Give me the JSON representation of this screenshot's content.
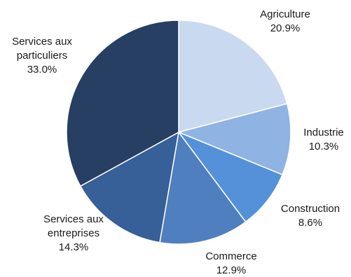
{
  "chart_data": {
    "type": "pie",
    "title": "",
    "start_angle_deg": 0,
    "direction": "clockwise",
    "slices": [
      {
        "label": [
          "Agriculture"
        ],
        "value": 20.9,
        "value_label": "20.9%",
        "color": "#c9d9ef"
      },
      {
        "label": [
          "Industrie"
        ],
        "value": 10.3,
        "value_label": "10.3%",
        "color": "#8fb3e2"
      },
      {
        "label": [
          "Construction"
        ],
        "value": 8.6,
        "value_label": "8.6%",
        "color": "#5491d8"
      },
      {
        "label": [
          "Commerce"
        ],
        "value": 12.9,
        "value_label": "12.9%",
        "color": "#4f7fbf"
      },
      {
        "label": [
          "Services aux",
          "entreprises"
        ],
        "value": 14.3,
        "value_label": "14.3%",
        "color": "#375f98"
      },
      {
        "label": [
          "Services aux",
          "particuliers"
        ],
        "value": 33.0,
        "value_label": "33.0%",
        "color": "#263f63"
      }
    ]
  }
}
